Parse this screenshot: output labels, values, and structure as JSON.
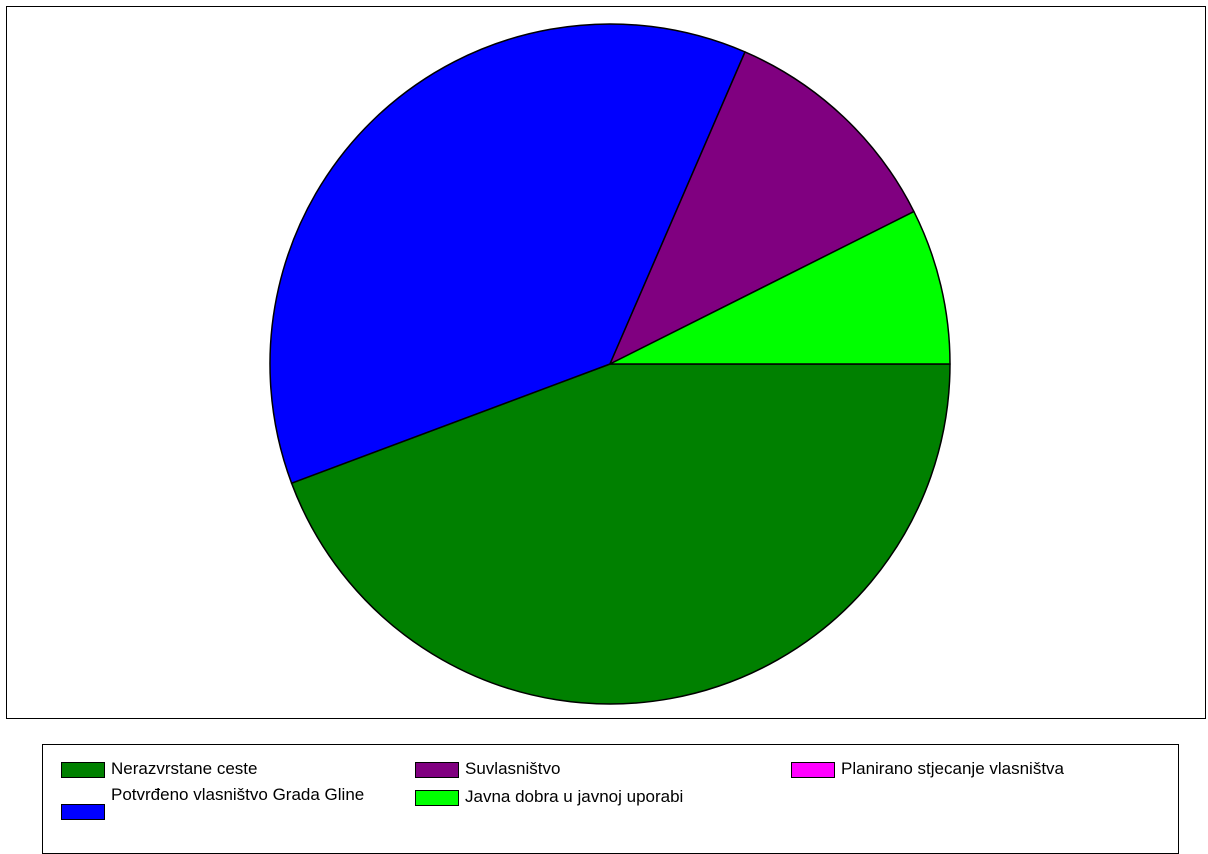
{
  "chart_data": {
    "type": "pie",
    "title": "",
    "start_angle_deg": 0,
    "direction": "clockwise",
    "series": [
      {
        "name": "",
        "slices": [
          {
            "label": "Nerazvrstane ceste",
            "value": 44.3,
            "color": "#008000"
          },
          {
            "label": "Potvrđeno vlasništvo Grada Gline",
            "value": 37.2,
            "color": "#0000ff"
          },
          {
            "label": "Suvlasništvo",
            "value": 11.1,
            "color": "#800080"
          },
          {
            "label": "Javna dobra u javnoj uporabi",
            "value": 7.4,
            "color": "#00ff00"
          },
          {
            "label": "Planirano stjecanje vlasništva",
            "value": 0,
            "color": "#ff00ff"
          }
        ]
      }
    ],
    "legend": {
      "position": "bottom",
      "items": [
        {
          "label": "Nerazvrstane ceste",
          "color": "#008000"
        },
        {
          "label": "Suvlasništvo",
          "color": "#800080"
        },
        {
          "label": "Planirano stjecanje vlasništva",
          "color": "#ff00ff"
        },
        {
          "label": "Potvrđeno vlasništvo Grada Gline",
          "color": "#0000ff"
        },
        {
          "label": "Javna dobra u javnoj uporabi",
          "color": "#00ff00"
        }
      ]
    }
  }
}
